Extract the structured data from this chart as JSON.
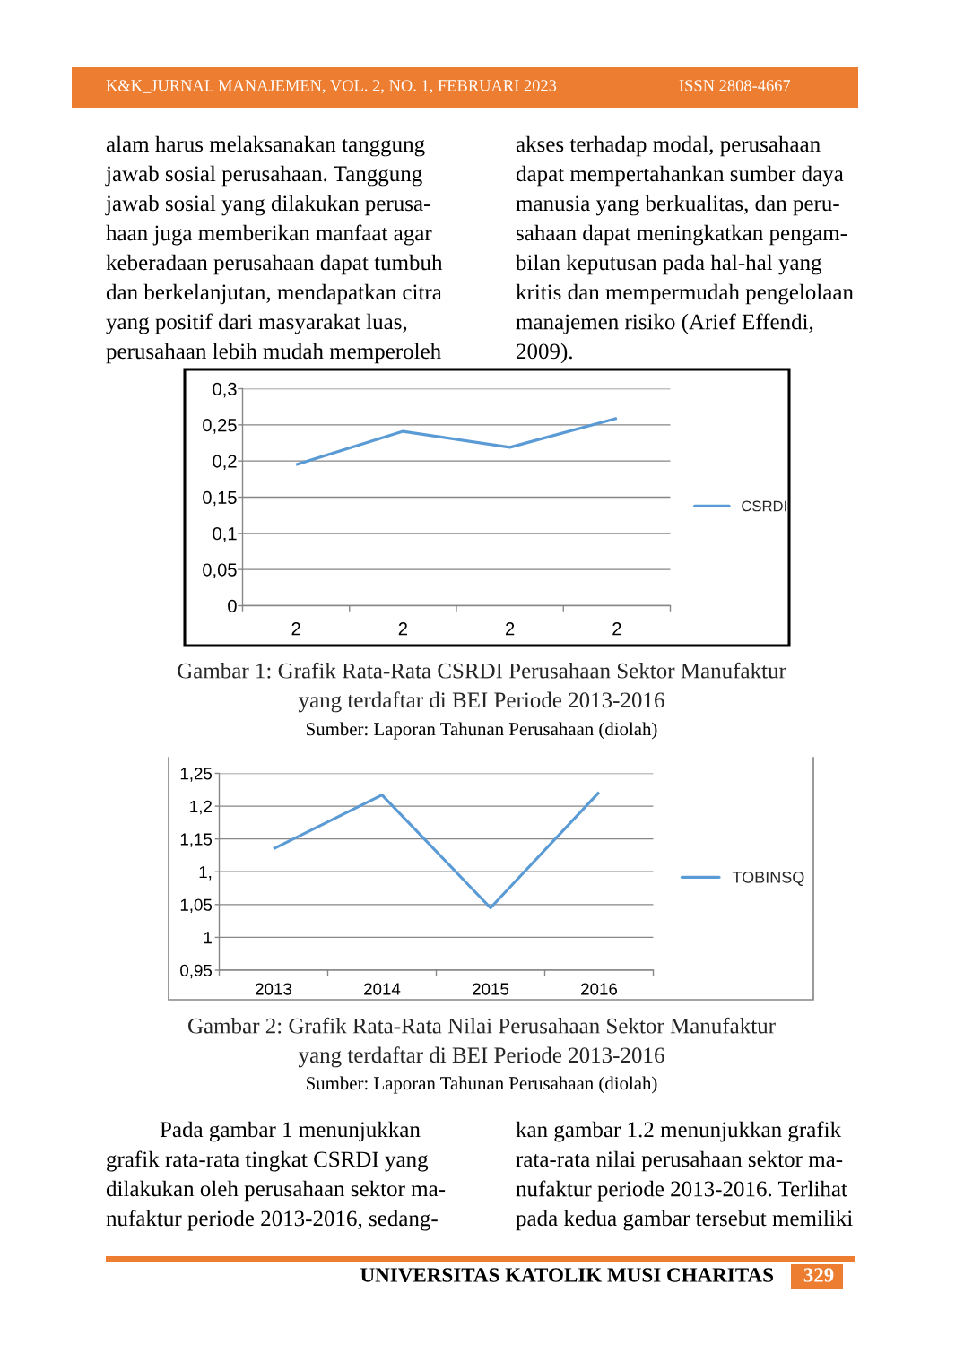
{
  "chart_data": [
    {
      "type": "line",
      "title": "Gambar 1: Grafik Rata-Rata CSRDI Perusahaan Sektor Manufaktur\nyang terdaftar di BEI Periode 2013-2016",
      "categories": [
        "2",
        "2",
        "2",
        "2"
      ],
      "series": [
        {
          "name": "CSRDI",
          "color": "#5b9bd5",
          "values": [
            0.195,
            0.241,
            0.219,
            0.259
          ]
        }
      ],
      "ylim": [
        0,
        0.3
      ],
      "yticks": [
        0,
        {
          "value": 0.05,
          "label": "0,05"
        },
        {
          "value": 0.1,
          "label": "0,1"
        },
        {
          "value": 0.15,
          "label": "0,15"
        },
        {
          "value": 0.2,
          "label": "0,2"
        },
        {
          "value": 0.25,
          "label": "0,25"
        },
        {
          "value": 0.3,
          "label": "0,3"
        }
      ],
      "grid": "y",
      "legend": "right",
      "annotations": [
        "K&K_JURNAL MANAJEMEN, VOL. 2, NO. 1, FEBRUARI 2023",
        "ISSN 2808-4667",
        "alam harus melaksanakan tanggung",
        "jawab sosial perusahaan. Tanggung",
        "jawab sosial yang dilakukan perusa-",
        "haan juga memberikan manfaat agar",
        "keberadaan perusahaan dapat tumbuh",
        "dan berkelanjutan, mendapatkan citra",
        "yang positif dari masyarakat luas,",
        "perusahaan lebih mudah memperoleh",
        "akses terhadap modal, perusahaan",
        "dapat mempertahankan sumber daya",
        "manusia yang berkualitas, dan peru-",
        "sahaan dapat meningkatkan pengam-",
        "bilan keputusan pada hal-hal yang",
        "kritis dan mempermudah pengelolaan",
        "manajemen risiko (Arief Effendi,",
        "2009).",
        "Sumber: Laporan Tahunan Perusahaan (diolah)"
      ]
    },
    {
      "type": "line",
      "title": "Gambar 2: Grafik Rata-Rata Nilai Perusahaan Sektor Manufaktur\nyang terdaftar di BEI Periode 2013-2016",
      "categories": [
        "2013",
        "2014",
        "2015",
        "2016"
      ],
      "series": [
        {
          "name": "TOBINSQ",
          "color": "#5b9bd5",
          "values": [
            1.135,
            1.217,
            1.045,
            1.221
          ]
        }
      ],
      "ylim": [
        0.95,
        1.25
      ],
      "yticks": [
        {
          "value": 0.95,
          "label": "0,95"
        },
        1,
        {
          "value": 1.05,
          "label": "1,05"
        },
        {
          "value": 1.1,
          "label": "1,"
        },
        {
          "value": 1.15,
          "label": "1,15"
        },
        {
          "value": 1.2,
          "label": "1,2"
        },
        {
          "value": 1.25,
          "label": "1,25"
        }
      ],
      "grid": "y",
      "legend": "right",
      "annotations": [
        "Sumber: Laporan Tahunan Perusahaan (diolah)",
        "Pada gambar 1 menunjukkan",
        "grafik rata-rata tingkat CSRDI yang",
        "dilakukan oleh perusahaan sektor ma-",
        "nufaktur periode 2013-2016, sedang-",
        "kan gambar 1.2 menunjukkan grafik",
        "rata-rata nilai perusahaan sektor ma-",
        "nufaktur periode 2013-2016. Terlihat",
        "pada kedua gambar tersebut memiliki",
        "UNIVERSITAS KATOLIK MUSI CHARITAS",
        "329"
      ]
    }
  ]
}
